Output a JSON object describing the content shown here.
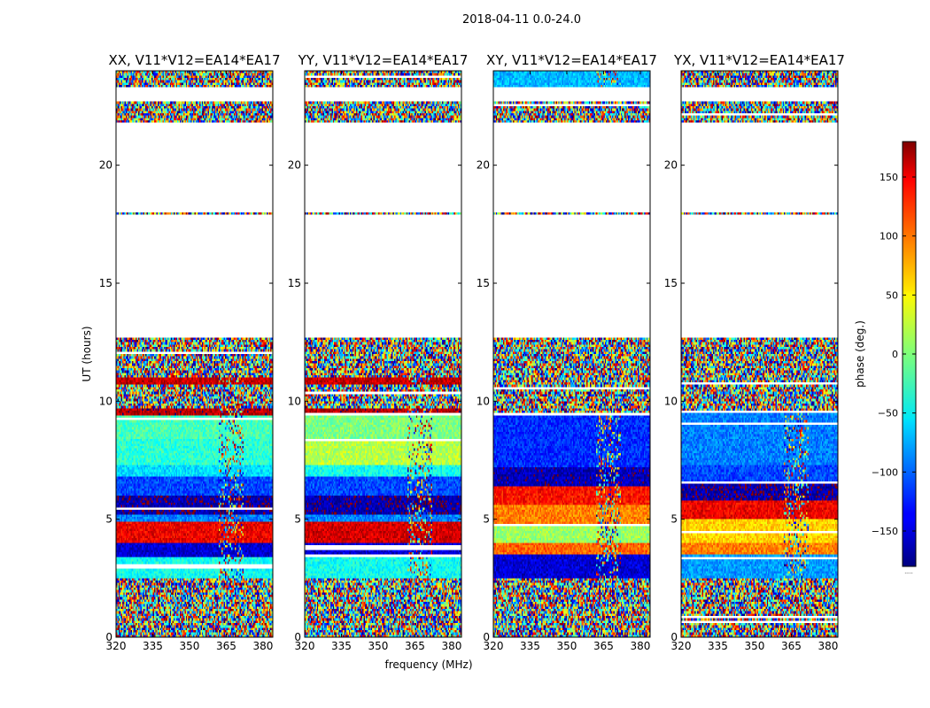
{
  "chart_data": {
    "type": "heatmap",
    "suptitle": "2018-04-11 0.0-24.0",
    "xlabel": "frequency (MHz)",
    "ylabel": "UT (hours)",
    "colorbar": {
      "label": "phase (deg.)",
      "range": [
        -180,
        180
      ],
      "ticks": [
        -150,
        -100,
        -50,
        0,
        50,
        100,
        150
      ],
      "tick_labels": [
        "−150",
        "−100",
        "−50",
        "0",
        "50",
        "100",
        "150"
      ],
      "colormap": "jet",
      "extra_label": "....."
    },
    "xlim": [
      320,
      384
    ],
    "x_ticks": [
      320,
      335,
      350,
      365,
      380
    ],
    "ylim": [
      0,
      24
    ],
    "y_ticks": [
      0,
      5,
      10,
      15,
      20
    ],
    "panels": [
      {
        "title": "XX, V11*V12=EA14*EA17",
        "pol": "XX",
        "bands": [
          {
            "y0": 0.0,
            "y1": 2.5,
            "phase": null
          },
          {
            "y0": 2.5,
            "y1": 3.4,
            "phase": -40
          },
          {
            "y0": 3.4,
            "y1": 4.0,
            "phase": -150
          },
          {
            "y0": 4.0,
            "y1": 4.9,
            "phase": 140
          },
          {
            "y0": 4.9,
            "y1": 5.2,
            "phase": -90
          },
          {
            "y0": 5.2,
            "y1": 6.0,
            "phase": -165
          },
          {
            "y0": 6.0,
            "y1": 6.8,
            "phase": -110
          },
          {
            "y0": 6.8,
            "y1": 7.3,
            "phase": -55
          },
          {
            "y0": 7.3,
            "y1": 8.4,
            "phase": -30
          },
          {
            "y0": 8.4,
            "y1": 9.4,
            "phase": -20
          },
          {
            "y0": 9.4,
            "y1": 9.7,
            "phase": 160
          },
          {
            "y0": 9.7,
            "y1": 10.7,
            "phase": null
          },
          {
            "y0": 10.7,
            "y1": 11.0,
            "phase": 155
          },
          {
            "y0": 11.0,
            "y1": 12.7,
            "phase": null
          },
          {
            "y0": 17.9,
            "y1": 18.0,
            "phase": null
          },
          {
            "y0": 21.8,
            "y1": 22.7,
            "phase": null
          },
          {
            "y0": 23.3,
            "y1": 24.0,
            "phase": null
          }
        ]
      },
      {
        "title": "YY, V11*V12=EA14*EA17",
        "pol": "YY",
        "bands": [
          {
            "y0": 0.0,
            "y1": 2.5,
            "phase": null
          },
          {
            "y0": 2.5,
            "y1": 3.4,
            "phase": -40
          },
          {
            "y0": 3.4,
            "y1": 4.0,
            "phase": -150
          },
          {
            "y0": 4.0,
            "y1": 4.9,
            "phase": 150
          },
          {
            "y0": 4.9,
            "y1": 5.2,
            "phase": -90
          },
          {
            "y0": 5.2,
            "y1": 6.0,
            "phase": -165
          },
          {
            "y0": 6.0,
            "y1": 6.8,
            "phase": -110
          },
          {
            "y0": 6.8,
            "y1": 7.3,
            "phase": -40
          },
          {
            "y0": 7.3,
            "y1": 8.4,
            "phase": 20
          },
          {
            "y0": 8.4,
            "y1": 9.4,
            "phase": 0
          },
          {
            "y0": 9.4,
            "y1": 9.7,
            "phase": 160
          },
          {
            "y0": 9.7,
            "y1": 10.7,
            "phase": null
          },
          {
            "y0": 10.7,
            "y1": 11.0,
            "phase": 155
          },
          {
            "y0": 11.0,
            "y1": 12.7,
            "phase": null
          },
          {
            "y0": 17.9,
            "y1": 18.0,
            "phase": null
          },
          {
            "y0": 21.8,
            "y1": 22.7,
            "phase": null
          },
          {
            "y0": 23.3,
            "y1": 24.0,
            "phase": null
          }
        ]
      },
      {
        "title": "XY, V11*V12=EA14*EA17",
        "pol": "XY",
        "bands": [
          {
            "y0": 0.0,
            "y1": 2.5,
            "phase": null
          },
          {
            "y0": 2.5,
            "y1": 3.5,
            "phase": -150
          },
          {
            "y0": 3.5,
            "y1": 4.0,
            "phase": 100
          },
          {
            "y0": 4.0,
            "y1": 4.8,
            "phase": 10
          },
          {
            "y0": 4.8,
            "y1": 5.6,
            "phase": 90
          },
          {
            "y0": 5.6,
            "y1": 6.4,
            "phase": 130
          },
          {
            "y0": 6.4,
            "y1": 7.2,
            "phase": -160
          },
          {
            "y0": 7.2,
            "y1": 9.5,
            "phase": -120
          },
          {
            "y0": 9.5,
            "y1": 12.7,
            "phase": null
          },
          {
            "y0": 17.9,
            "y1": 18.0,
            "phase": null
          },
          {
            "y0": 21.8,
            "y1": 22.7,
            "phase": null
          },
          {
            "y0": 23.3,
            "y1": 24.0,
            "phase": -70
          }
        ]
      },
      {
        "title": "YX, V11*V12=EA14*EA17",
        "pol": "YX",
        "bands": [
          {
            "y0": 0.0,
            "y1": 2.5,
            "phase": null
          },
          {
            "y0": 2.5,
            "y1": 3.5,
            "phase": -80
          },
          {
            "y0": 3.5,
            "y1": 4.0,
            "phase": 90
          },
          {
            "y0": 4.0,
            "y1": 5.0,
            "phase": 60
          },
          {
            "y0": 5.0,
            "y1": 5.8,
            "phase": 140
          },
          {
            "y0": 5.8,
            "y1": 6.6,
            "phase": -165
          },
          {
            "y0": 6.6,
            "y1": 7.3,
            "phase": -110
          },
          {
            "y0": 7.3,
            "y1": 9.5,
            "phase": -90
          },
          {
            "y0": 9.5,
            "y1": 12.7,
            "phase": null
          },
          {
            "y0": 17.9,
            "y1": 18.0,
            "phase": null
          },
          {
            "y0": 21.8,
            "y1": 22.7,
            "phase": null
          },
          {
            "y0": 23.3,
            "y1": 24.0,
            "phase": null
          }
        ]
      }
    ],
    "note": "Bands give approximate coherent mean phase (deg) over UT ranges; null = noisy/random phase. Unlisted UT ranges are flagged (blank)."
  }
}
